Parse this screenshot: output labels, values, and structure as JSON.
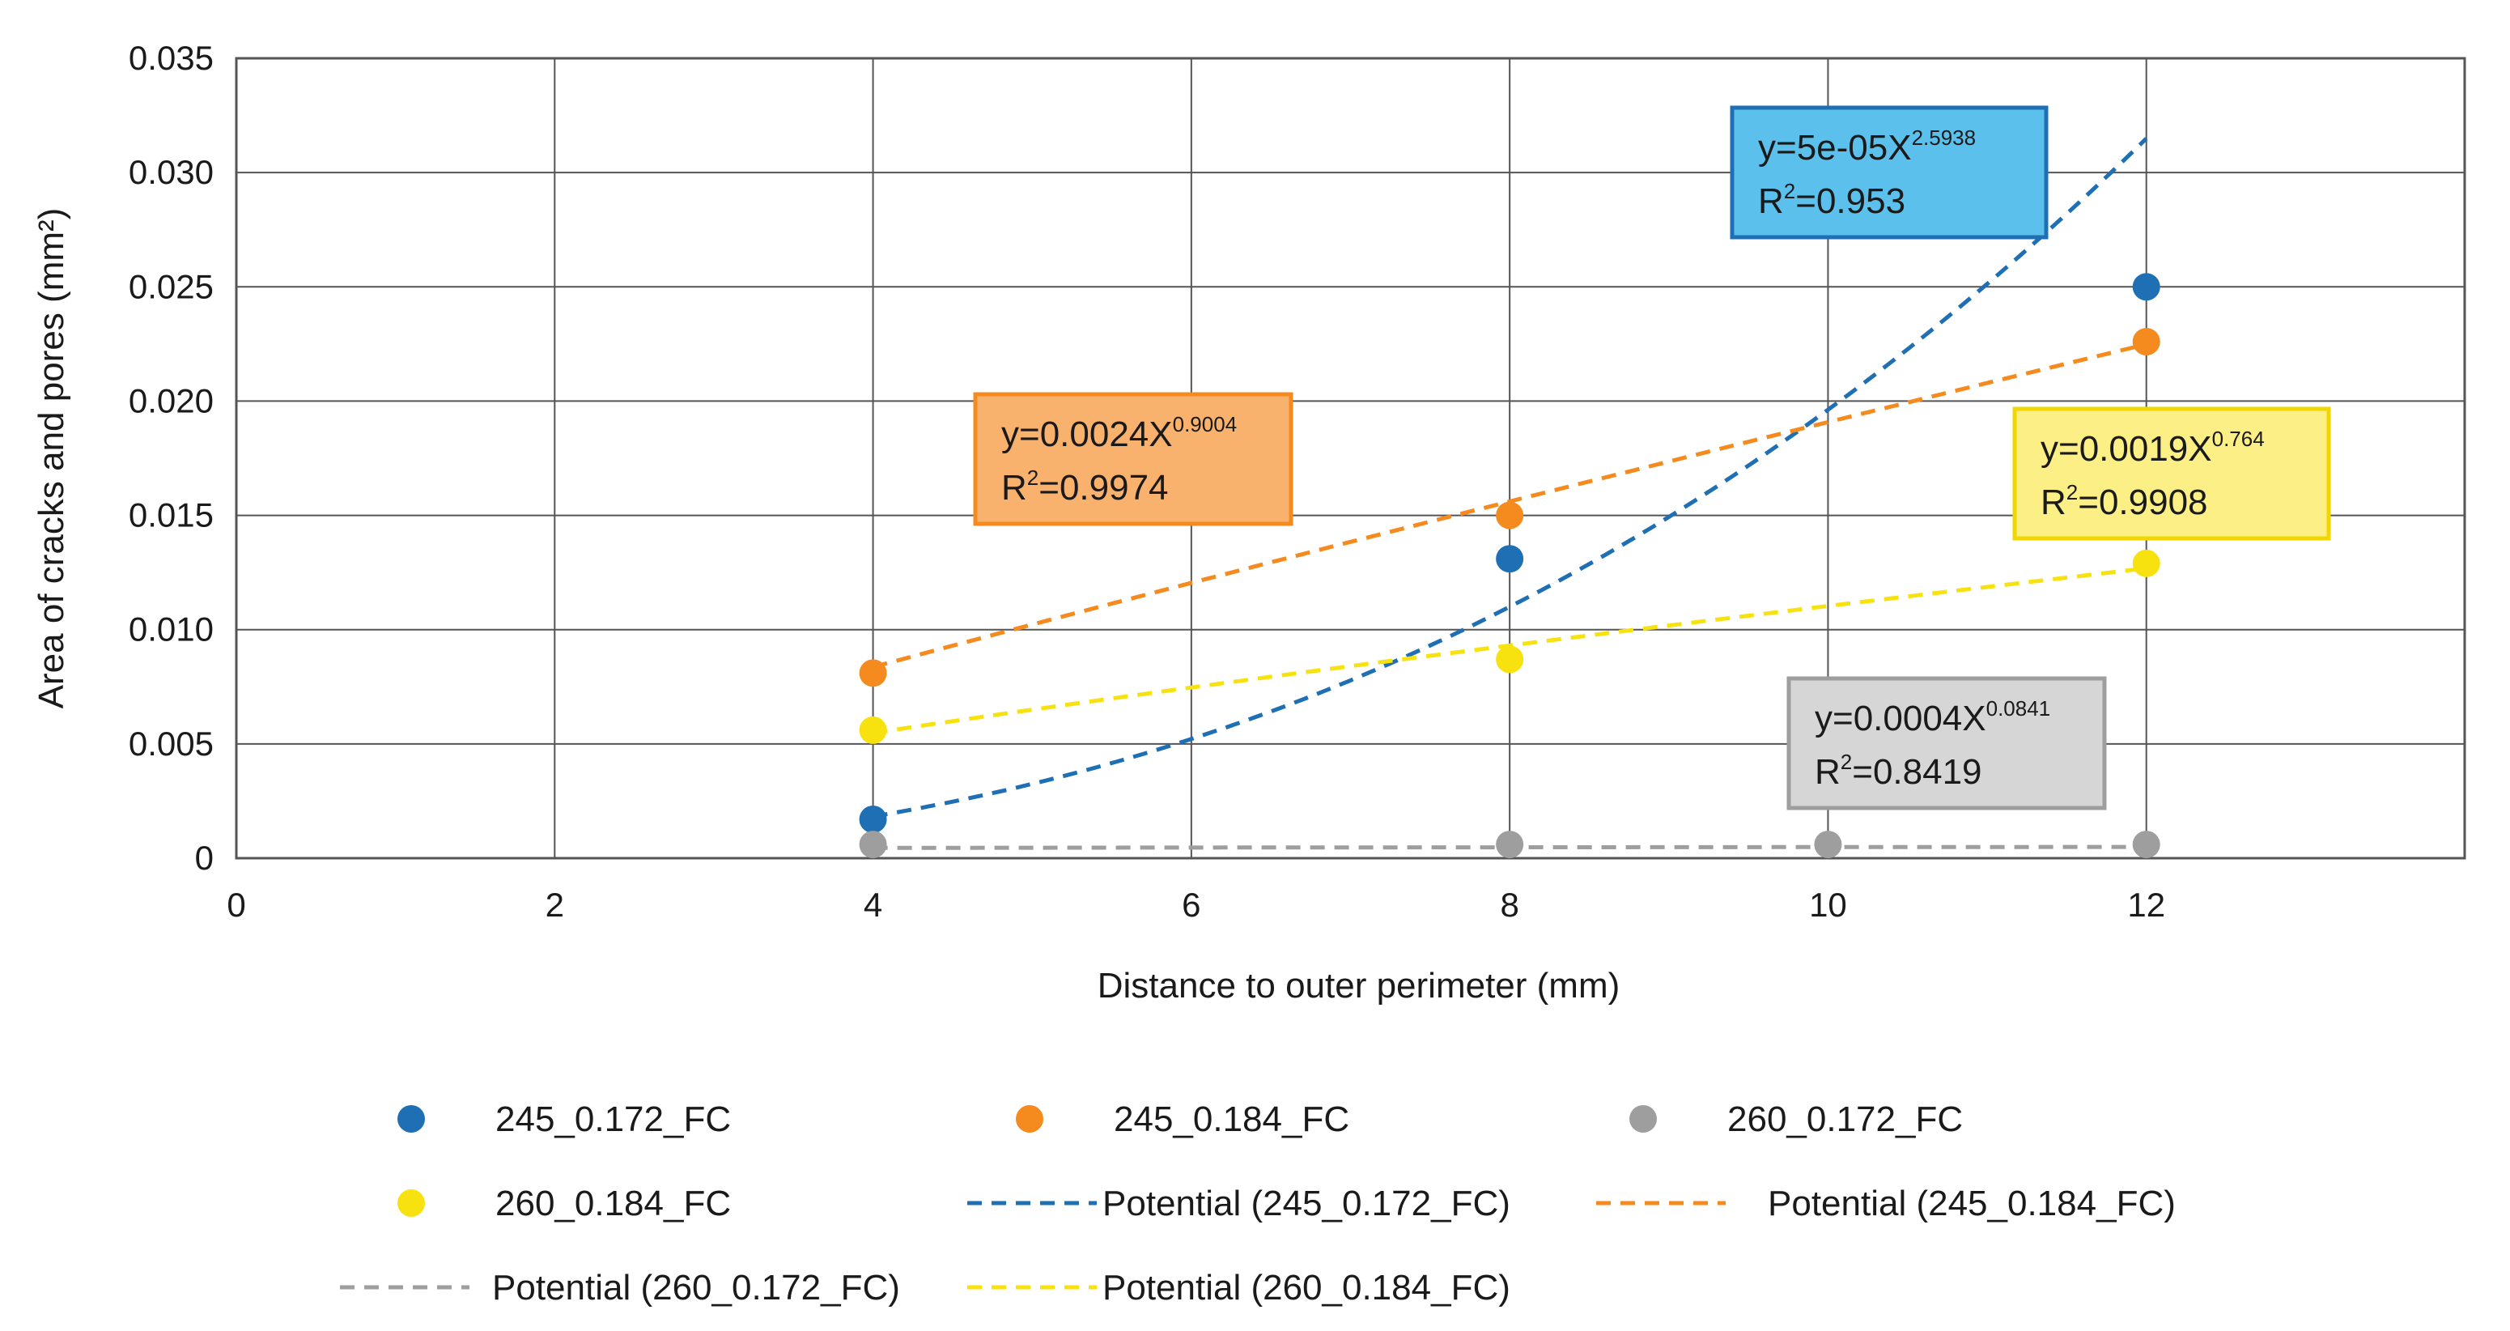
{
  "chart_data": {
    "type": "scatter",
    "xlabel": "Distance to outer perimeter (mm)",
    "ylabel": "Area of cracks and pores (mm²)",
    "xlim": [
      0,
      14
    ],
    "ylim": [
      0,
      0.035
    ],
    "xticks": [
      0,
      2,
      4,
      6,
      8,
      10,
      12
    ],
    "yticks": [
      {
        "value": 0,
        "label": "0"
      },
      {
        "value": 0.005,
        "label": "0.005"
      },
      {
        "value": 0.01,
        "label": "0.010"
      },
      {
        "value": 0.015,
        "label": "0.015"
      },
      {
        "value": 0.02,
        "label": "0.020"
      },
      {
        "value": 0.025,
        "label": "0.025"
      },
      {
        "value": 0.03,
        "label": "0.030"
      },
      {
        "value": 0.035,
        "label": "0.035"
      }
    ],
    "grid": true,
    "series": [
      {
        "name": "245_0.172_FC",
        "color": "#1f6fb5",
        "x": [
          4,
          8,
          12
        ],
        "y": [
          0.0017,
          0.0131,
          0.025
        ],
        "trend": {
          "name": "Potential (245_0.172_FC)",
          "a": 5e-05,
          "b": 2.5938,
          "x_range": [
            4,
            12
          ]
        }
      },
      {
        "name": "245_0.184_FC",
        "color": "#f58a1f",
        "x": [
          4,
          8,
          12
        ],
        "y": [
          0.0081,
          0.015,
          0.0226
        ],
        "trend": {
          "name": "Potential (245_0.184_FC)",
          "a": 0.0024,
          "b": 0.9004,
          "x_range": [
            4,
            12
          ]
        }
      },
      {
        "name": "260_0.172_FC",
        "color": "#9e9e9e",
        "x": [
          4,
          8,
          10,
          12
        ],
        "y": [
          0.0006,
          0.0006,
          0.0006,
          0.0006
        ],
        "trend": {
          "name": "Potential (260_0.172_FC)",
          "a": 0.0004,
          "b": 0.0841,
          "x_range": [
            4,
            12
          ]
        }
      },
      {
        "name": "260_0.184_FC",
        "color": "#f7e20f",
        "x": [
          4,
          8,
          12
        ],
        "y": [
          0.0056,
          0.0087,
          0.0129
        ],
        "trend": {
          "name": "Potential (260_0.184_FC)",
          "a": 0.0019,
          "b": 0.764,
          "x_range": [
            4,
            12
          ]
        }
      }
    ],
    "annotations": [
      {
        "series": "245_0.172_FC",
        "eq_prefix": "y=5e-05X",
        "eq_exp": "2.5938",
        "r2_prefix": "R",
        "r2_sup": "2",
        "r2_value": "=0.953",
        "fill": "#5bc0eb",
        "border": "#1f6fb5"
      },
      {
        "series": "245_0.184_FC",
        "eq_prefix": "y=0.0024X",
        "eq_exp": "0.9004",
        "r2_prefix": "R",
        "r2_sup": "2",
        "r2_value": "=0.9974",
        "fill": "#f9b26d",
        "border": "#f58a1f"
      },
      {
        "series": "260_0.184_FC",
        "eq_prefix": "y=0.0019X",
        "eq_exp": "0.764",
        "r2_prefix": "R",
        "r2_sup": "2",
        "r2_value": "=0.9908",
        "fill": "#fcef86",
        "border": "#f2d600"
      },
      {
        "series": "260_0.172_FC",
        "eq_prefix": "y=0.0004X",
        "eq_exp": "0.0841",
        "r2_prefix": "R",
        "r2_sup": "2",
        "r2_value": "=0.8419",
        "fill": "#d6d6d6",
        "border": "#9e9e9e"
      }
    ],
    "legend": [
      {
        "label": "245_0.172_FC",
        "kind": "marker",
        "color": "#1f6fb5"
      },
      {
        "label": "245_0.184_FC",
        "kind": "marker",
        "color": "#f58a1f"
      },
      {
        "label": "260_0.172_FC",
        "kind": "marker",
        "color": "#9e9e9e"
      },
      {
        "label": "260_0.184_FC",
        "kind": "marker",
        "color": "#f7e20f"
      },
      {
        "label": "Potential (245_0.172_FC)",
        "kind": "dash",
        "color": "#1f6fb5"
      },
      {
        "label": "Potential (245_0.184_FC)",
        "kind": "dash",
        "color": "#f58a1f"
      },
      {
        "label": "Potential (260_0.172_FC)",
        "kind": "dash",
        "color": "#9e9e9e"
      },
      {
        "label": "Potential (260_0.184_FC)",
        "kind": "dash",
        "color": "#f7e20f"
      }
    ],
    "legend_position": "bottom"
  }
}
